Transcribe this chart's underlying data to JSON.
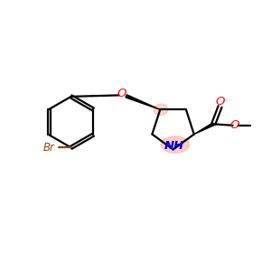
{
  "bg_color": "#ffffff",
  "bond_color": "#000000",
  "br_color": "#8B4513",
  "o_color": "#ff0000",
  "n_color": "#0000cc",
  "nh_highlight_color": "#ffaaaa",
  "nh_highlight_alpha": 0.6,
  "c4_highlight_color": "#ffaaaa",
  "c4_highlight_alpha": 0.5,
  "bond_lw": 1.6,
  "figsize": [
    3.0,
    3.0
  ],
  "dpi": 100,
  "xlim": [
    0,
    10
  ],
  "ylim": [
    0,
    10
  ]
}
